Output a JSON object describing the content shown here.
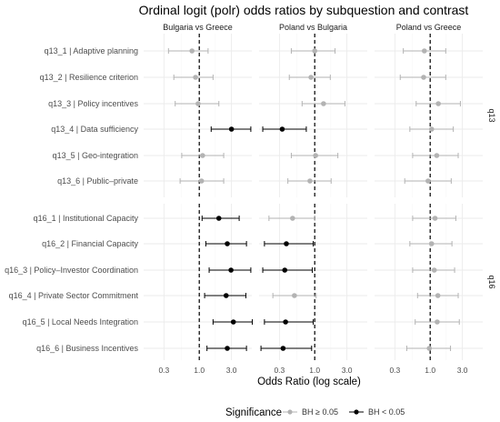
{
  "chart_data": {
    "type": "scatter",
    "subtype": "forest-plot with error bars",
    "title": "Ordinal logit (polr) odds ratios by subquestion and contrast",
    "xlabel": "Odds Ratio (log scale)",
    "x_scale": "log",
    "xlim": [
      0.15,
      6.0
    ],
    "x_ticks": [
      0.3,
      1.0,
      3.0
    ],
    "x_tick_labels": [
      "0.3",
      "1.0",
      "3.0"
    ],
    "reference_line": 1.0,
    "grid": true,
    "facet_columns": [
      "Bulgaria vs Greece",
      "Poland vs Bulgaria",
      "Poland vs Greece"
    ],
    "facet_rows": [
      "q13",
      "q16"
    ],
    "row_labels": {
      "q13": [
        "q13_1 | Adaptive planning",
        "q13_2 | Resilience criterion",
        "q13_3 | Policy incentives",
        "q13_4 | Data sufficiency",
        "q13_5 | Geo-integration",
        "q13_6 | Public–private"
      ],
      "q16": [
        "q16_1 | Institutional Capacity",
        "q16_2 | Financial Capacity",
        "q16_3 | Policy–Investor Coordination",
        "q16_4 | Private Sector Commitment",
        "q16_5 | Local Needs Integration",
        "q16_6 | Business Incentives"
      ]
    },
    "legend": {
      "title": "Significance",
      "position": "bottom",
      "items": [
        {
          "label": "BH ≥ 0.05",
          "color": "#b3b3b3"
        },
        {
          "label": "BH < 0.05",
          "color": "#000000"
        }
      ]
    },
    "series": [
      {
        "name": "Bulgaria vs Greece",
        "or": [
          0.78,
          0.88,
          0.96,
          3.0,
          1.12,
          1.08,
          1.95,
          2.6,
          2.95,
          2.5,
          3.2,
          2.6
        ],
        "low": [
          0.35,
          0.42,
          0.44,
          1.5,
          0.55,
          0.52,
          1.1,
          1.25,
          1.4,
          1.2,
          1.6,
          1.3
        ],
        "high": [
          1.35,
          1.6,
          1.95,
          5.8,
          2.3,
          2.3,
          3.9,
          5.0,
          5.8,
          4.9,
          6.1,
          5.0
        ],
        "sig": [
          false,
          false,
          false,
          true,
          false,
          false,
          true,
          true,
          true,
          true,
          true,
          true
        ]
      },
      {
        "name": "Poland vs Bulgaria",
        "or": [
          1.0,
          0.88,
          1.35,
          0.33,
          1.03,
          0.85,
          0.47,
          0.38,
          0.36,
          0.5,
          0.37,
          0.34
        ],
        "low": [
          0.45,
          0.42,
          0.65,
          0.17,
          0.45,
          0.4,
          0.21,
          0.18,
          0.17,
          0.24,
          0.18,
          0.16
        ],
        "high": [
          2.0,
          1.7,
          2.8,
          0.75,
          2.2,
          1.75,
          1.0,
          0.95,
          0.92,
          1.05,
          0.95,
          0.9
        ],
        "sig": [
          false,
          false,
          false,
          true,
          false,
          false,
          false,
          true,
          true,
          false,
          true,
          true
        ]
      },
      {
        "name": "Poland vs Greece",
        "or": [
          0.82,
          0.8,
          1.32,
          1.05,
          1.25,
          0.93,
          1.18,
          1.05,
          1.15,
          1.3,
          1.27,
          0.97
        ],
        "low": [
          0.4,
          0.36,
          0.62,
          0.5,
          0.55,
          0.42,
          0.55,
          0.5,
          0.55,
          0.65,
          0.6,
          0.45
        ],
        "high": [
          1.7,
          1.7,
          2.8,
          2.2,
          2.6,
          2.05,
          2.4,
          2.1,
          2.3,
          2.6,
          2.7,
          2.0
        ],
        "sig": [
          false,
          false,
          false,
          false,
          false,
          false,
          false,
          false,
          false,
          false,
          false,
          false
        ]
      }
    ]
  }
}
